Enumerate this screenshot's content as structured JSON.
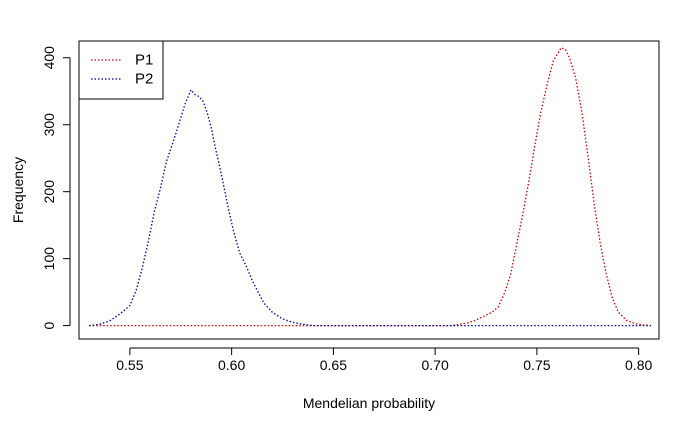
{
  "chart_data": {
    "type": "line",
    "title": "",
    "xlabel": "Mendelian probability",
    "ylabel": "Frequency",
    "xlim": [
      0.525,
      0.81
    ],
    "ylim": [
      -20,
      425
    ],
    "x_ticks": [
      0.55,
      0.6,
      0.65,
      0.7,
      0.75,
      0.8
    ],
    "x_tick_labels": [
      "0.55",
      "0.60",
      "0.65",
      "0.70",
      "0.75",
      "0.80"
    ],
    "y_ticks": [
      0,
      100,
      200,
      300,
      400
    ],
    "y_tick_labels": [
      "0",
      "100",
      "200",
      "300",
      "400"
    ],
    "legend_position": "top-left",
    "series": [
      {
        "name": "P1",
        "color": "#cc0000",
        "line_style": "dotted",
        "points": [
          [
            0.53,
            0
          ],
          [
            0.6,
            0
          ],
          [
            0.65,
            0
          ],
          [
            0.7,
            0
          ],
          [
            0.708,
            0
          ],
          [
            0.712,
            2
          ],
          [
            0.716,
            4
          ],
          [
            0.72,
            8
          ],
          [
            0.724,
            14
          ],
          [
            0.728,
            20
          ],
          [
            0.731,
            28
          ],
          [
            0.734,
            48
          ],
          [
            0.737,
            75
          ],
          [
            0.74,
            120
          ],
          [
            0.743,
            165
          ],
          [
            0.746,
            215
          ],
          [
            0.749,
            270
          ],
          [
            0.752,
            320
          ],
          [
            0.755,
            360
          ],
          [
            0.758,
            395
          ],
          [
            0.76,
            405
          ],
          [
            0.762,
            415
          ],
          [
            0.764,
            412
          ],
          [
            0.766,
            400
          ],
          [
            0.769,
            370
          ],
          [
            0.772,
            320
          ],
          [
            0.775,
            255
          ],
          [
            0.778,
            185
          ],
          [
            0.781,
            125
          ],
          [
            0.784,
            78
          ],
          [
            0.787,
            42
          ],
          [
            0.79,
            20
          ],
          [
            0.794,
            8
          ],
          [
            0.798,
            3
          ],
          [
            0.802,
            1
          ],
          [
            0.806,
            0
          ]
        ]
      },
      {
        "name": "P2",
        "color": "#0000aa",
        "line_style": "dotted",
        "points": [
          [
            0.53,
            0
          ],
          [
            0.535,
            2
          ],
          [
            0.54,
            7
          ],
          [
            0.545,
            17
          ],
          [
            0.55,
            30
          ],
          [
            0.553,
            52
          ],
          [
            0.556,
            85
          ],
          [
            0.559,
            125
          ],
          [
            0.562,
            170
          ],
          [
            0.565,
            205
          ],
          [
            0.568,
            245
          ],
          [
            0.571,
            272
          ],
          [
            0.574,
            300
          ],
          [
            0.577,
            330
          ],
          [
            0.58,
            352
          ],
          [
            0.582,
            345
          ],
          [
            0.584,
            342
          ],
          [
            0.586,
            335
          ],
          [
            0.588,
            318
          ],
          [
            0.59,
            295
          ],
          [
            0.592,
            265
          ],
          [
            0.595,
            225
          ],
          [
            0.598,
            180
          ],
          [
            0.601,
            140
          ],
          [
            0.604,
            108
          ],
          [
            0.607,
            90
          ],
          [
            0.61,
            68
          ],
          [
            0.613,
            50
          ],
          [
            0.616,
            33
          ],
          [
            0.62,
            20
          ],
          [
            0.625,
            10
          ],
          [
            0.63,
            5
          ],
          [
            0.635,
            2
          ],
          [
            0.64,
            0
          ],
          [
            0.7,
            0
          ],
          [
            0.75,
            0
          ],
          [
            0.806,
            0
          ]
        ]
      }
    ]
  }
}
